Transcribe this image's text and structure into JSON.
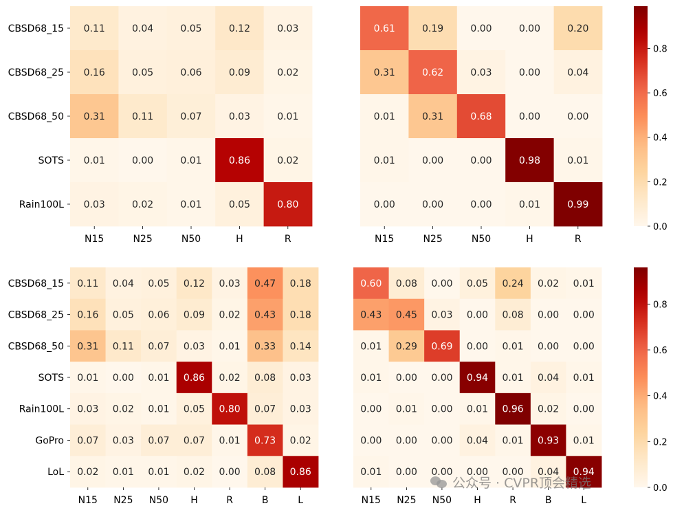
{
  "chart_data": [
    {
      "type": "heatmap",
      "rows": [
        "CBSD68_15",
        "CBSD68_25",
        "CBSD68_50",
        "SOTS",
        "Rain100L"
      ],
      "cols": [
        "N15",
        "N25",
        "N50",
        "H",
        "R"
      ],
      "values": [
        [
          0.11,
          0.04,
          0.05,
          0.12,
          0.03
        ],
        [
          0.16,
          0.05,
          0.06,
          0.09,
          0.02
        ],
        [
          0.31,
          0.11,
          0.07,
          0.03,
          0.01
        ],
        [
          0.01,
          0.0,
          0.01,
          0.86,
          0.02
        ],
        [
          0.03,
          0.02,
          0.01,
          0.05,
          0.8
        ]
      ]
    },
    {
      "type": "heatmap",
      "rows": [
        "CBSD68_15",
        "CBSD68_25",
        "CBSD68_50",
        "SOTS",
        "Rain100L"
      ],
      "cols": [
        "N15",
        "N25",
        "N50",
        "H",
        "R"
      ],
      "values": [
        [
          0.61,
          0.19,
          0.0,
          0.0,
          0.2
        ],
        [
          0.31,
          0.62,
          0.03,
          0.0,
          0.04
        ],
        [
          0.01,
          0.31,
          0.68,
          0.0,
          0.0
        ],
        [
          0.01,
          0.0,
          0.0,
          0.98,
          0.01
        ],
        [
          0.0,
          0.0,
          0.0,
          0.01,
          0.99
        ]
      ]
    },
    {
      "type": "heatmap",
      "rows": [
        "CBSD68_15",
        "CBSD68_25",
        "CBSD68_50",
        "SOTS",
        "Rain100L",
        "GoPro",
        "LoL"
      ],
      "cols": [
        "N15",
        "N25",
        "N50",
        "H",
        "R",
        "B",
        "L"
      ],
      "values": [
        [
          0.11,
          0.04,
          0.05,
          0.12,
          0.03,
          0.47,
          0.18
        ],
        [
          0.16,
          0.05,
          0.06,
          0.09,
          0.02,
          0.43,
          0.18
        ],
        [
          0.31,
          0.11,
          0.07,
          0.03,
          0.01,
          0.33,
          0.14
        ],
        [
          0.01,
          0.0,
          0.01,
          0.86,
          0.02,
          0.08,
          0.03
        ],
        [
          0.03,
          0.02,
          0.01,
          0.05,
          0.8,
          0.07,
          0.03
        ],
        [
          0.07,
          0.03,
          0.07,
          0.07,
          0.01,
          0.73,
          0.02
        ],
        [
          0.02,
          0.01,
          0.01,
          0.02,
          0.0,
          0.08,
          0.86
        ]
      ]
    },
    {
      "type": "heatmap",
      "rows": [
        "CBSD68_15",
        "CBSD68_25",
        "CBSD68_50",
        "SOTS",
        "Rain100L",
        "GoPro",
        "LoL"
      ],
      "cols": [
        "N15",
        "N25",
        "N50",
        "H",
        "R",
        "B",
        "L"
      ],
      "values": [
        [
          0.6,
          0.08,
          0.0,
          0.05,
          0.24,
          0.02,
          0.01
        ],
        [
          0.43,
          0.45,
          0.03,
          0.0,
          0.08,
          0.0,
          0.0
        ],
        [
          0.01,
          0.29,
          0.69,
          0.0,
          0.01,
          0.0,
          0.0
        ],
        [
          0.01,
          0.0,
          0.0,
          0.94,
          0.01,
          0.04,
          0.01
        ],
        [
          0.0,
          0.01,
          0.0,
          0.01,
          0.96,
          0.02,
          0.0
        ],
        [
          0.0,
          0.0,
          0.0,
          0.04,
          0.01,
          0.93,
          0.01
        ],
        [
          0.01,
          0.0,
          0.0,
          0.0,
          0.0,
          0.04,
          0.94
        ]
      ]
    }
  ],
  "colorbars": [
    {
      "ticks": [
        "0.0",
        "0.2",
        "0.4",
        "0.6",
        "0.8"
      ],
      "tick_values": [
        0,
        0.2,
        0.4,
        0.6,
        0.8
      ],
      "range": [
        0,
        0.99
      ]
    },
    {
      "ticks": [
        "0.0",
        "0.2",
        "0.4",
        "0.6",
        "0.8"
      ],
      "tick_values": [
        0,
        0.2,
        0.4,
        0.6,
        0.8
      ],
      "range": [
        0,
        0.96
      ]
    }
  ],
  "colormap": [
    "#fff7ec",
    "#fee8c8",
    "#fdd49e",
    "#fdbb84",
    "#fc8d59",
    "#ef6548",
    "#d7301f",
    "#b30000",
    "#7f0000"
  ],
  "watermark": {
    "text": "公众号 · CVPR顶会精选",
    "icon": "wechat-icon"
  }
}
